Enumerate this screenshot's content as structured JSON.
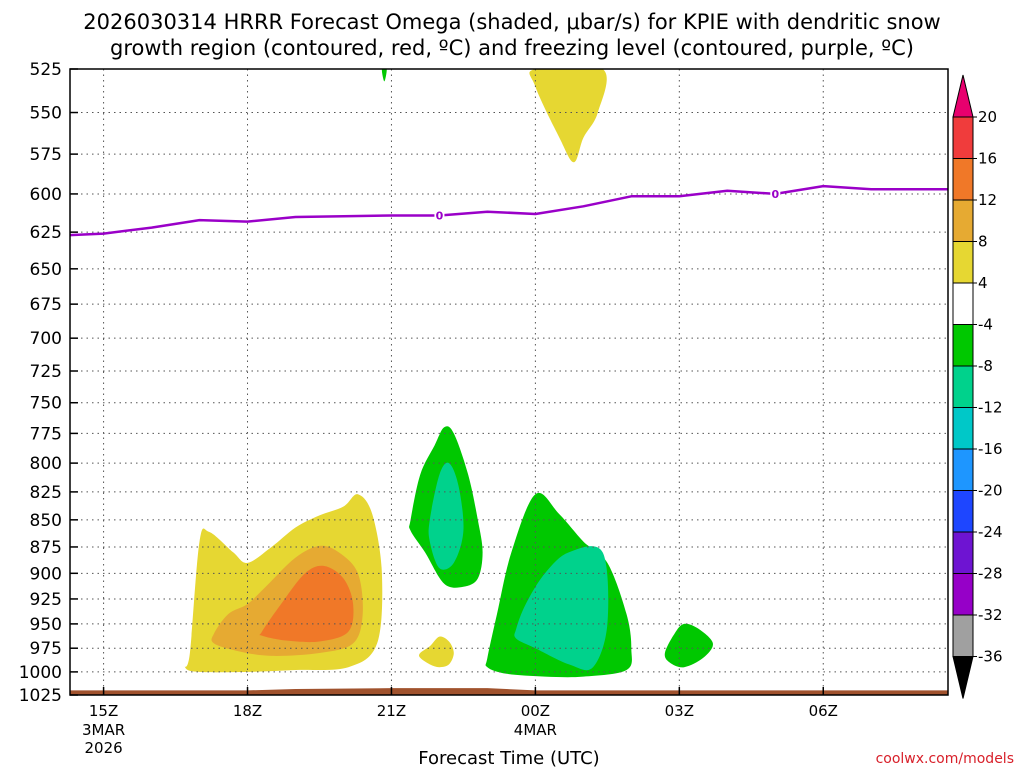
{
  "chart_data": {
    "type": "time-height contour",
    "title_line1": "2026030314 HRRR Forecast Omega (shaded, μbar/s) for KPIE with dendritic snow",
    "title_line2": "growth region (contoured, red, ºC) and freezing level (contoured, purple, ºC)",
    "xlabel": "Forecast Time (UTC)",
    "x_range_hours": [
      14.3,
      32.6
    ],
    "y_range_hpa": [
      525,
      1025
    ],
    "y_ticks": [
      "525",
      "550",
      "575",
      "600",
      "625",
      "650",
      "675",
      "700",
      "725",
      "750",
      "775",
      "800",
      "825",
      "850",
      "875",
      "900",
      "925",
      "950",
      "975",
      "1000",
      "1025"
    ],
    "x_ticks": [
      {
        "label": "15Z",
        "hour": 15,
        "sub": [
          "3MAR",
          "2026"
        ]
      },
      {
        "label": "18Z",
        "hour": 18,
        "sub": []
      },
      {
        "label": "21Z",
        "hour": 21,
        "sub": []
      },
      {
        "label": "00Z",
        "hour": 24,
        "sub": [
          "4MAR"
        ]
      },
      {
        "label": "03Z",
        "hour": 27,
        "sub": []
      },
      {
        "label": "06Z",
        "hour": 30,
        "sub": []
      }
    ],
    "colorbar": {
      "labels": [
        "20",
        "16",
        "12",
        "8",
        "4",
        "-4",
        "-8",
        "-12",
        "-16",
        "-20",
        "-24",
        "-28",
        "-32",
        "-36"
      ],
      "colors": [
        "#e8006e",
        "#f03c3c",
        "#f07828",
        "#e6aa32",
        "#e6d732",
        "#ffffff",
        "#00c800",
        "#00d28c",
        "#00c8c8",
        "#1e96ff",
        "#1e46ff",
        "#6e14d2",
        "#9600c8",
        "#a0a0a0",
        "#000000"
      ]
    },
    "freezing_level": {
      "label": "0",
      "hour": [
        14.3,
        15.0,
        16.0,
        17.0,
        18.0,
        19.0,
        20.0,
        21.0,
        22.0,
        23.0,
        24.0,
        25.0,
        26.0,
        27.0,
        28.0,
        29.0,
        30.0,
        31.0,
        32.6
      ],
      "hpa": [
        627,
        626,
        622,
        617,
        618,
        615,
        614.5,
        614,
        614,
        611.5,
        613,
        608,
        601.5,
        601.5,
        598,
        600,
        595,
        597,
        597
      ],
      "label_points": [
        {
          "hour": 22,
          "hpa": 614
        },
        {
          "hour": 29,
          "hpa": 600
        }
      ]
    },
    "omega_regions": [
      {
        "name": "surface",
        "color": "#a0522d",
        "hour": [
          14.3,
          18.0,
          19.0,
          21.0,
          23.0,
          24.0,
          32.6,
          32.6,
          14.3
        ],
        "hpa": [
          1020,
          1020,
          1018.5,
          1017.5,
          1017.5,
          1020,
          1020,
          1025,
          1025
        ]
      },
      {
        "name": "upward-4-yellow",
        "color": "#e6d732",
        "hour": [
          16.8,
          17.0,
          17.2,
          17.7,
          18.0,
          18.5,
          19.0,
          19.5,
          20.0,
          20.3,
          20.6,
          20.8,
          20.7,
          20.1,
          19.0,
          18.0,
          17.0,
          16.7
        ],
        "hpa": [
          980,
          870,
          861,
          880,
          890,
          875,
          857,
          846,
          838,
          827,
          845,
          900,
          970,
          995,
          998,
          1000,
          1000,
          995
        ]
      },
      {
        "name": "upward-4-yellow-upper",
        "color": "#e6d732",
        "hour": [
          24.0,
          25.4,
          25.3,
          25.0,
          24.8,
          24.5,
          24.0
        ],
        "hpa": [
          525,
          525,
          550,
          565,
          580,
          565,
          535
        ]
      },
      {
        "name": "upward-4-yellow-small",
        "color": "#e6d732",
        "hour": [
          21.6,
          21.8,
          22.0,
          22.2,
          22.3,
          22.2,
          22.0,
          21.8,
          21.6
        ],
        "hpa": [
          980,
          973,
          963,
          968,
          980,
          992,
          995,
          992,
          985
        ]
      },
      {
        "name": "upward-8-gold",
        "color": "#e6aa32",
        "hour": [
          17.3,
          17.6,
          18.0,
          18.4,
          19.0,
          19.5,
          19.9,
          20.3,
          20.4,
          20.2,
          19.5,
          18.5,
          17.8,
          17.3
        ],
        "hpa": [
          960,
          940,
          930,
          912,
          885,
          874,
          880,
          900,
          940,
          970,
          980,
          983,
          978,
          970
        ]
      },
      {
        "name": "upward-12-orange",
        "color": "#f07828",
        "hour": [
          18.3,
          18.7,
          19.2,
          19.6,
          20.0,
          20.2,
          20.1,
          19.5,
          18.8,
          18.3
        ],
        "hpa": [
          958,
          930,
          900,
          893,
          905,
          930,
          958,
          968,
          967,
          962
        ]
      },
      {
        "name": "downward-4-green-left",
        "color": "#00c800",
        "hour": [
          21.4,
          21.6,
          21.9,
          22.1,
          22.3,
          22.6,
          22.8,
          22.9,
          22.8,
          22.5,
          22.1,
          21.7,
          21.4
        ],
        "hpa": [
          850,
          810,
          785,
          770,
          775,
          810,
          850,
          880,
          905,
          913,
          910,
          880,
          860
        ]
      },
      {
        "name": "downward-8-teal-left",
        "color": "#00d28c",
        "hour": [
          21.8,
          22.0,
          22.2,
          22.4,
          22.5,
          22.3,
          22.0,
          21.8
        ],
        "hpa": [
          850,
          810,
          800,
          820,
          860,
          890,
          895,
          870
        ]
      },
      {
        "name": "downward-4-green-center",
        "color": "#00c800",
        "hour": [
          23.0,
          23.2,
          23.5,
          24.0,
          24.5,
          25.0,
          25.5,
          25.9,
          26.0,
          25.9,
          25.0,
          24.2,
          23.4,
          23.0
        ],
        "hpa": [
          985,
          940,
          880,
          827,
          845,
          870,
          890,
          940,
          975,
          998,
          1005,
          1005,
          1002,
          995
        ]
      },
      {
        "name": "downward-8-teal-center",
        "color": "#00d28c",
        "hour": [
          23.6,
          23.8,
          24.2,
          24.7,
          25.4,
          25.5,
          25.2,
          24.7,
          24.0,
          23.6
        ],
        "hpa": [
          955,
          930,
          900,
          880,
          880,
          950,
          995,
          992,
          975,
          965
        ]
      },
      {
        "name": "downward-4-green-right",
        "color": "#00c800",
        "hour": [
          26.7,
          26.9,
          27.1,
          27.4,
          27.7,
          27.5,
          27.1,
          26.8
        ],
        "hpa": [
          980,
          960,
          950,
          955,
          970,
          985,
          995,
          990
        ]
      },
      {
        "name": "downward-4-green-top",
        "color": "#00c800",
        "hour": [
          20.8,
          20.9,
          20.85
        ],
        "hpa": [
          525,
          525,
          532
        ]
      }
    ]
  },
  "watermark": "coolwx.com/models"
}
